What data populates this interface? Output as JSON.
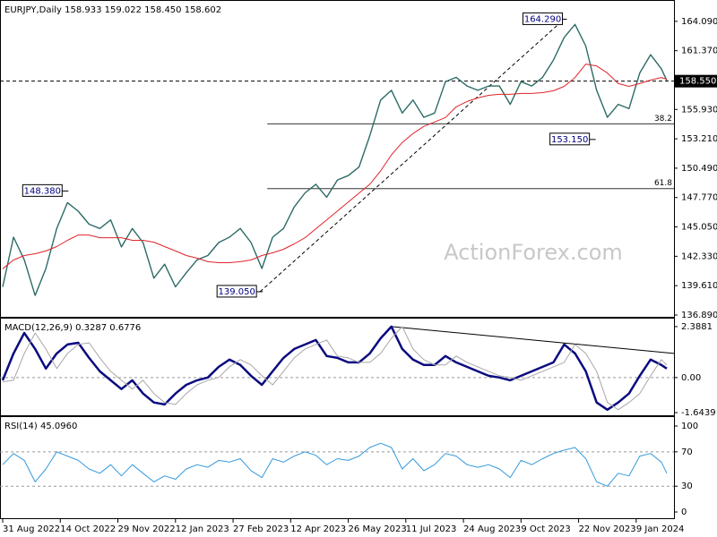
{
  "chart_data": [
    {
      "type": "line",
      "title": "EURJPY,Daily  158.933 159.022 158.450 158.602",
      "x": [
        0,
        6,
        12,
        18,
        24,
        30,
        36,
        42,
        48,
        54,
        60,
        66,
        72,
        78,
        84,
        90,
        96,
        102,
        108,
        114,
        120,
        126,
        132,
        138,
        144,
        150,
        156,
        162,
        168,
        174,
        180,
        186,
        192,
        198,
        204,
        210,
        216,
        222,
        228,
        234,
        240,
        246,
        252,
        258,
        264,
        270,
        276,
        282,
        288,
        294,
        300,
        306,
        312,
        318,
        324,
        330,
        336,
        342,
        348,
        354,
        360,
        366,
        369
      ],
      "xlim": [
        -1.5,
        373
      ],
      "ylim": [
        136.64,
        165.9
      ],
      "yticks": [
        {
          "value": 164.09,
          "label": "164.090"
        },
        {
          "value": 161.37,
          "label": "161.370"
        },
        {
          "value": 155.93,
          "label": "155.930"
        },
        {
          "value": 153.21,
          "label": "153.210"
        },
        {
          "value": 150.49,
          "label": "150.490"
        },
        {
          "value": 147.77,
          "label": "147.770"
        },
        {
          "value": 145.05,
          "label": "145.050"
        },
        {
          "value": 142.33,
          "label": "142.330"
        },
        {
          "value": 139.61,
          "label": "139.610"
        },
        {
          "value": 136.89,
          "label": "136.890"
        }
      ],
      "series": [
        {
          "color": "#2c6b66",
          "values": [
            139.5,
            144.1,
            142.0,
            138.7,
            141.2,
            144.9,
            147.3,
            146.5,
            145.3,
            144.9,
            145.7,
            143.2,
            144.9,
            143.6,
            140.3,
            141.6,
            139.5,
            140.8,
            142.0,
            142.4,
            143.6,
            144.1,
            144.9,
            143.6,
            141.2,
            144.1,
            144.9,
            146.9,
            148.2,
            149.0,
            147.8,
            149.4,
            149.8,
            150.6,
            153.5,
            156.8,
            157.7,
            155.6,
            156.8,
            155.2,
            155.6,
            158.5,
            158.9,
            158.1,
            157.7,
            158.1,
            158.1,
            156.4,
            158.5,
            158.1,
            158.9,
            160.5,
            162.6,
            163.8,
            161.8,
            157.7,
            155.2,
            156.4,
            156.0,
            159.3,
            161.0,
            159.7,
            158.6
          ]
        },
        {
          "color": "#e0242a",
          "values": [
            141.17,
            141.99,
            142.4,
            142.57,
            142.82,
            143.23,
            143.81,
            144.3,
            144.3,
            144.05,
            144.05,
            144.05,
            143.81,
            143.81,
            143.64,
            143.23,
            142.82,
            142.4,
            142.16,
            141.83,
            141.74,
            141.74,
            141.83,
            141.99,
            142.4,
            142.65,
            142.98,
            143.48,
            144.05,
            144.88,
            145.7,
            146.53,
            147.35,
            148.18,
            149.0,
            150.24,
            151.72,
            152.87,
            153.7,
            154.36,
            154.77,
            155.18,
            156.17,
            156.67,
            157.0,
            157.24,
            157.33,
            157.33,
            157.41,
            157.41,
            157.49,
            157.66,
            158.07,
            158.89,
            160.13,
            159.96,
            159.3,
            158.32,
            158.07,
            158.32,
            158.65,
            158.89,
            158.73
          ]
        }
      ],
      "last_price": {
        "value": 158.55,
        "label": "158.550"
      },
      "annotations": [
        {
          "x": 35,
          "value": 148.38,
          "label": "148.380"
        },
        {
          "x": 143,
          "value": 139.05,
          "label": "139.050"
        },
        {
          "x": 312,
          "value": 164.29,
          "label": "164.290"
        },
        {
          "x": 328,
          "value": 153.15,
          "label": "153.150"
        }
      ],
      "fib_levels": [
        {
          "start": 147,
          "value": 154.6,
          "label": "38.2"
        },
        {
          "start": 147,
          "value": 148.6,
          "label": "61.8"
        }
      ],
      "trendline": {
        "x": [
          143,
          312
        ],
        "values": [
          139.05,
          164.29
        ]
      },
      "watermark": "ActionForex.com"
    },
    {
      "type": "line",
      "title": "MACD(12,26,9) 0.3287 0.6776",
      "x": [
        0,
        6,
        12,
        18,
        24,
        30,
        36,
        42,
        48,
        54,
        60,
        66,
        72,
        78,
        84,
        90,
        96,
        102,
        108,
        114,
        120,
        126,
        132,
        138,
        144,
        150,
        156,
        162,
        168,
        174,
        180,
        186,
        192,
        198,
        204,
        210,
        216,
        222,
        228,
        234,
        240,
        246,
        252,
        258,
        264,
        270,
        276,
        282,
        288,
        294,
        300,
        306,
        312,
        318,
        324,
        330,
        336,
        342,
        348,
        354,
        360,
        366,
        369
      ],
      "xlim": [
        -1.5,
        373
      ],
      "ylim": [
        -1.81,
        2.72
      ],
      "yticks": [
        2.3881,
        {
          "value": 0,
          "label": "0.00"
        },
        -1.6439
      ],
      "levels": [
        0
      ],
      "series": [
        {
          "color": "#0a0a80",
          "values": [
            -0.13,
            1.13,
            2.09,
            1.34,
            0.42,
            1.13,
            1.55,
            1.63,
            0.92,
            0.29,
            -0.13,
            -0.54,
            -0.13,
            -0.75,
            -1.17,
            -1.26,
            -0.75,
            -0.34,
            -0.13,
            0,
            0.5,
            0.84,
            0.59,
            0.08,
            -0.34,
            0.29,
            0.92,
            1.34,
            1.55,
            1.76,
            1.01,
            0.92,
            0.71,
            0.71,
            1.13,
            1.84,
            2.39,
            1.34,
            0.84,
            0.59,
            0.59,
            1.01,
            0.71,
            0.5,
            0.29,
            0.08,
            0,
            -0.13,
            0.08,
            0.29,
            0.5,
            0.71,
            1.55,
            1.13,
            0.29,
            -1.17,
            -1.51,
            -1.17,
            -0.75,
            0.08,
            0.84,
            0.59,
            0.42
          ]
        },
        {
          "color": "#a8a8a8",
          "values": [
            -0.2,
            -0.13,
            1.13,
            2.09,
            1.34,
            0.42,
            1.13,
            1.55,
            1.63,
            0.92,
            0.29,
            -0.13,
            -0.54,
            -0.13,
            -0.75,
            -1.17,
            -1.26,
            -0.75,
            -0.34,
            -0.13,
            0,
            0.5,
            0.84,
            0.59,
            0.08,
            -0.34,
            0.29,
            0.92,
            1.34,
            1.55,
            1.76,
            1.01,
            0.92,
            0.71,
            0.71,
            1.13,
            1.84,
            2.39,
            1.34,
            0.84,
            0.59,
            0.59,
            1.01,
            0.71,
            0.5,
            0.29,
            0.08,
            0,
            -0.13,
            0.08,
            0.29,
            0.5,
            0.71,
            1.55,
            1.13,
            0.29,
            -1.17,
            -1.51,
            -1.17,
            -0.75,
            0.08,
            0.84,
            0.59
          ]
        }
      ],
      "trendline": {
        "x": [
          216,
          373
        ],
        "values": [
          2.39,
          1.13
        ]
      }
    },
    {
      "type": "line",
      "title": "RSI(14) 45.0960",
      "x": [
        0,
        6,
        12,
        18,
        24,
        30,
        36,
        42,
        48,
        54,
        60,
        66,
        72,
        78,
        84,
        90,
        96,
        102,
        108,
        114,
        120,
        126,
        132,
        138,
        144,
        150,
        156,
        162,
        168,
        174,
        180,
        186,
        192,
        198,
        204,
        210,
        216,
        222,
        228,
        234,
        240,
        246,
        252,
        258,
        264,
        270,
        276,
        282,
        288,
        294,
        300,
        306,
        312,
        318,
        324,
        330,
        336,
        342,
        348,
        354,
        360,
        366,
        369
      ],
      "xlim": [
        -1.5,
        373
      ],
      "ylim": [
        -8.3,
        109.4
      ],
      "yticks": [
        100,
        70,
        30,
        0
      ],
      "levels": [
        70,
        30
      ],
      "xticks": [
        {
          "value": 0,
          "label": "31 Aug 2022"
        },
        {
          "value": 32,
          "label": "14 Oct 2022"
        },
        {
          "value": 64,
          "label": "29 Nov 2022"
        },
        {
          "value": 96,
          "label": "12 Jan 2023"
        },
        {
          "value": 128,
          "label": "27 Feb 2023"
        },
        {
          "value": 160,
          "label": "12 Apr 2023"
        },
        {
          "value": 192,
          "label": "26 May 2023"
        },
        {
          "value": 224,
          "label": "11 Jul 2023"
        },
        {
          "value": 256,
          "label": "24 Aug 2023"
        },
        {
          "value": 288,
          "label": "9 Oct 2023"
        },
        {
          "value": 320,
          "label": "22 Nov 2023"
        },
        {
          "value": 352,
          "label": "9 Jan 2024"
        }
      ],
      "series": [
        {
          "color": "#3399dd",
          "values": [
            55,
            68,
            60,
            35,
            50,
            70,
            65,
            60,
            50,
            45,
            55,
            42,
            55,
            45,
            35,
            42,
            38,
            50,
            55,
            52,
            60,
            58,
            62,
            48,
            40,
            62,
            58,
            65,
            70,
            66,
            55,
            62,
            60,
            65,
            75,
            80,
            75,
            50,
            62,
            48,
            55,
            68,
            65,
            55,
            52,
            55,
            50,
            40,
            60,
            55,
            62,
            68,
            72,
            75,
            62,
            35,
            30,
            45,
            42,
            65,
            68,
            58,
            45
          ]
        }
      ]
    }
  ]
}
